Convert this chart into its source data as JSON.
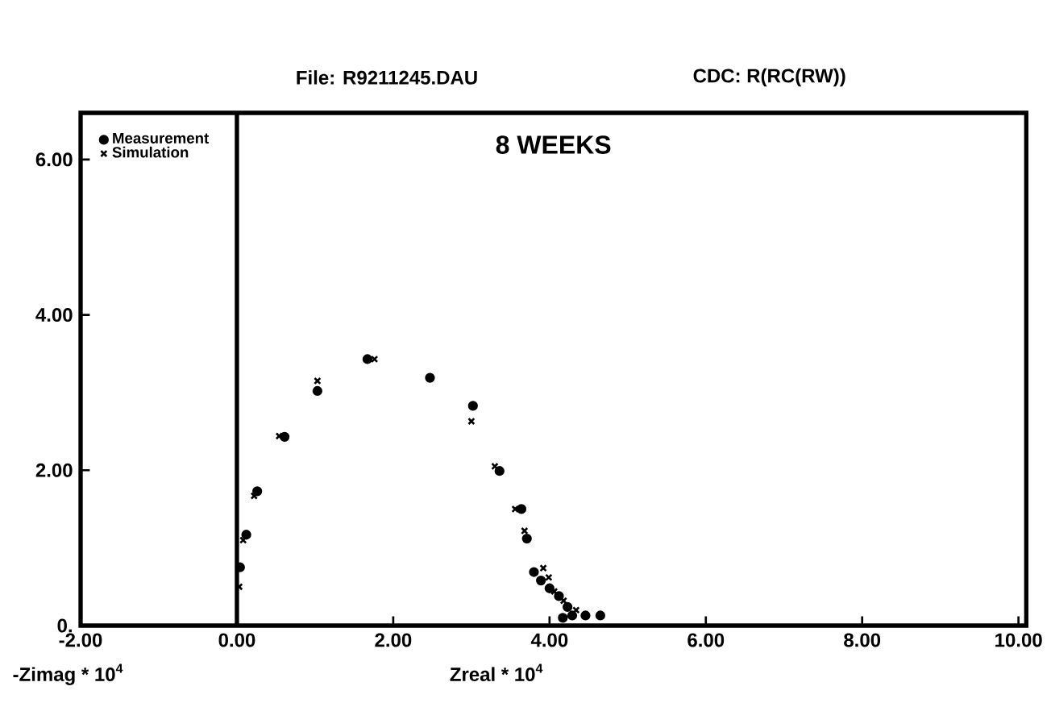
{
  "chart_data": {
    "type": "scatter",
    "title": "8 WEEKS",
    "annotations": [
      "File: R9211245.DAU",
      "CDC: R(RC(RW))"
    ],
    "xlabel": "Zreal * 10$^{4}$",
    "ylabel": "-Zimag * 10$^{4}$",
    "xlim": [
      -2,
      10.1
    ],
    "ylim": [
      0,
      6.6
    ],
    "xticks": [
      {
        "value": -2,
        "label": "-2.00"
      },
      {
        "value": 0,
        "label": "0.00"
      },
      {
        "value": 2,
        "label": "2.00"
      },
      {
        "value": 4,
        "label": "4.00"
      },
      {
        "value": 6,
        "label": "6.00"
      },
      {
        "value": 8,
        "label": "8.00"
      },
      {
        "value": 10,
        "label": "10.00"
      }
    ],
    "yticks": [
      {
        "value": 0,
        "label": "0."
      },
      {
        "value": 2,
        "label": "2.00"
      },
      {
        "value": 4,
        "label": "4.00"
      },
      {
        "value": 6,
        "label": "6.00"
      }
    ],
    "ref_lines": [
      {
        "axis": "x",
        "value": 0
      }
    ],
    "legend": "top left",
    "grid": false,
    "series": [
      {
        "name": "Measurement",
        "color": "#000000",
        "marker": "circle",
        "x": [
          0.04,
          0.12,
          0.26,
          0.61,
          1.03,
          1.67,
          2.47,
          3.02,
          3.36,
          3.64,
          3.71,
          3.8,
          3.89,
          4.0,
          4.12,
          4.17,
          4.23,
          4.29,
          4.46,
          4.65
        ],
        "values": [
          0.75,
          1.17,
          1.73,
          2.43,
          3.02,
          3.43,
          3.19,
          2.83,
          1.99,
          1.5,
          1.12,
          0.69,
          0.58,
          0.48,
          0.38,
          0.1,
          0.24,
          0.13,
          0.13,
          0.13
        ]
      },
      {
        "name": "Simulation",
        "color": "#000000",
        "marker": "cross",
        "x": [
          0.03,
          0.08,
          0.22,
          0.54,
          1.03,
          1.76,
          3.0,
          3.3,
          3.56,
          3.68,
          3.92,
          3.99,
          4.06,
          4.18,
          4.34
        ],
        "values": [
          0.5,
          1.1,
          1.67,
          2.44,
          3.15,
          3.43,
          2.63,
          2.05,
          1.5,
          1.22,
          0.74,
          0.62,
          0.44,
          0.32,
          0.2
        ]
      }
    ]
  }
}
